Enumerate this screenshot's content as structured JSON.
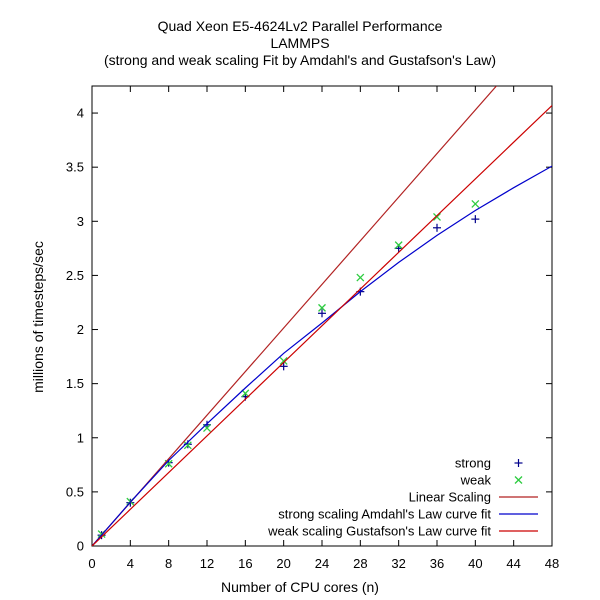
{
  "chart_data": {
    "type": "scatter",
    "title": "Quad Xeon E5-4624Lv2 Parallel Performance",
    "subtitle": "LAMMPS",
    "subtitle2": "(strong and weak scaling Fit by Amdahl's and Gustafson's Law)",
    "xlabel": "Number of CPU cores (n)",
    "ylabel": "millions of timesteps/sec",
    "xlim": [
      0,
      48
    ],
    "ylim": [
      0,
      4.25
    ],
    "xticks": [
      0,
      4,
      8,
      12,
      16,
      20,
      24,
      28,
      32,
      36,
      40,
      44,
      48
    ],
    "yticks": [
      0,
      0.5,
      1,
      1.5,
      2,
      2.5,
      3,
      3.5,
      4
    ],
    "legend_position": "bottom-right",
    "series": [
      {
        "name": "strong",
        "kind": "points",
        "marker": "+",
        "color": "#00008b",
        "x": [
          1,
          4,
          8,
          10,
          12,
          16,
          20,
          24,
          28,
          32,
          36,
          40
        ],
        "y": [
          0.1,
          0.4,
          0.77,
          0.94,
          1.12,
          1.38,
          1.66,
          2.15,
          2.35,
          2.75,
          2.94,
          3.02
        ]
      },
      {
        "name": "weak",
        "kind": "points",
        "marker": "x",
        "color": "#2ecc40",
        "x": [
          1,
          4,
          8,
          10,
          12,
          16,
          20,
          24,
          28,
          32,
          36,
          40
        ],
        "y": [
          0.11,
          0.41,
          0.76,
          0.93,
          1.09,
          1.41,
          1.71,
          2.2,
          2.48,
          2.78,
          3.04,
          3.16
        ]
      },
      {
        "name": "Linear Scaling",
        "kind": "line",
        "color": "#b22222",
        "x": [
          0,
          42.2
        ],
        "y": [
          0,
          4.25
        ]
      },
      {
        "name": "strong scaling Amdahl's Law curve fit",
        "kind": "line",
        "color": "#0000cc",
        "x": [
          0,
          4,
          8,
          12,
          16,
          20,
          24,
          28,
          32,
          36,
          40,
          44,
          48
        ],
        "y": [
          0,
          0.405,
          0.79,
          1.13,
          1.46,
          1.78,
          2.06,
          2.35,
          2.62,
          2.87,
          3.1,
          3.31,
          3.51
        ]
      },
      {
        "name": "weak scaling Gustafson's Law curve fit",
        "kind": "line",
        "color": "#cc0000",
        "x": [
          0,
          48
        ],
        "y": [
          0,
          4.07
        ]
      }
    ]
  }
}
